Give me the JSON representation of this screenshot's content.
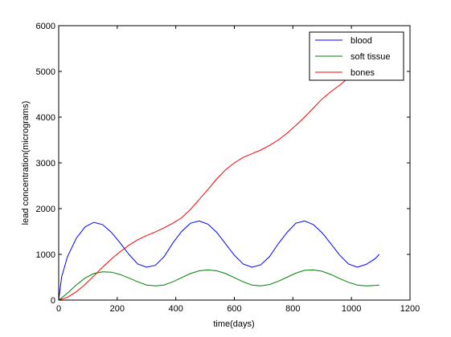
{
  "chart_data": {
    "type": "line",
    "title": "",
    "xlabel": "time(days)",
    "ylabel": "lead concentration(micrograms)",
    "xlim": [
      0,
      1200
    ],
    "ylim": [
      0,
      6000
    ],
    "xticks": [
      0,
      200,
      400,
      600,
      800,
      1000,
      1200
    ],
    "yticks": [
      0,
      1000,
      2000,
      3000,
      4000,
      5000,
      6000
    ],
    "grid": false,
    "legend_position": "top-right",
    "series": [
      {
        "name": "blood",
        "color": "#0000ff",
        "x": [
          0,
          10,
          30,
          60,
          90,
          120,
          150,
          180,
          210,
          240,
          270,
          300,
          330,
          360,
          390,
          420,
          450,
          480,
          510,
          540,
          570,
          600,
          630,
          660,
          690,
          720,
          750,
          780,
          810,
          840,
          870,
          900,
          930,
          960,
          990,
          1020,
          1050,
          1080,
          1095
        ],
        "y": [
          0,
          500,
          950,
          1350,
          1600,
          1700,
          1650,
          1480,
          1250,
          1000,
          790,
          720,
          760,
          950,
          1250,
          1500,
          1680,
          1730,
          1660,
          1480,
          1230,
          980,
          790,
          720,
          770,
          950,
          1230,
          1480,
          1680,
          1730,
          1650,
          1470,
          1230,
          980,
          790,
          720,
          780,
          900,
          1000
        ]
      },
      {
        "name": "soft tissue",
        "color": "#007f00",
        "x": [
          0,
          30,
          60,
          90,
          120,
          150,
          180,
          210,
          240,
          270,
          300,
          330,
          360,
          390,
          420,
          450,
          480,
          510,
          540,
          570,
          600,
          630,
          660,
          690,
          720,
          750,
          780,
          810,
          840,
          870,
          900,
          930,
          960,
          990,
          1020,
          1050,
          1080,
          1095
        ],
        "y": [
          0,
          150,
          330,
          480,
          580,
          620,
          610,
          560,
          480,
          400,
          330,
          310,
          330,
          400,
          490,
          580,
          640,
          660,
          640,
          580,
          490,
          400,
          330,
          310,
          340,
          410,
          500,
          590,
          650,
          660,
          630,
          560,
          470,
          390,
          330,
          310,
          320,
          330
        ]
      },
      {
        "name": "bones",
        "color": "#ff0000",
        "x": [
          0,
          30,
          60,
          90,
          120,
          150,
          180,
          210,
          240,
          270,
          300,
          330,
          360,
          390,
          420,
          450,
          480,
          510,
          540,
          570,
          600,
          630,
          660,
          690,
          720,
          750,
          780,
          810,
          840,
          870,
          900,
          930,
          960,
          990,
          1020,
          1050,
          1080,
          1095
        ],
        "y": [
          0,
          60,
          180,
          340,
          530,
          720,
          900,
          1060,
          1200,
          1320,
          1410,
          1490,
          1580,
          1680,
          1800,
          1980,
          2200,
          2420,
          2650,
          2850,
          3000,
          3120,
          3200,
          3280,
          3380,
          3500,
          3650,
          3820,
          4000,
          4200,
          4400,
          4560,
          4700,
          4860,
          5020,
          5180,
          5300,
          5380
        ]
      }
    ]
  }
}
